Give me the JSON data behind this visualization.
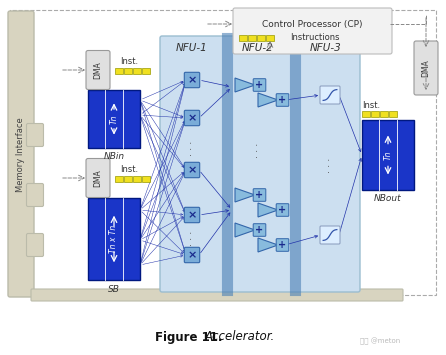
{
  "title": "Figure 11.",
  "title_italic": "Accelerator.",
  "bg_color": "#ffffff",
  "memory_interface_color": "#d8d4c0",
  "memory_interface_label": "Memory Interface",
  "blue_block_color": "#1a35c8",
  "light_blue_bg": "#ccdff0",
  "blue_separator_color": "#4a7fb5",
  "yellow_color": "#f0e020",
  "cp_box_color": "#f2f2f2",
  "gray_dma_color": "#e0e0e0",
  "arrow_color": "#555555",
  "dark_blue_arrow": "#2233aa",
  "nfu_labels": [
    "NFU-1",
    "NFU-2",
    "NFU-3"
  ],
  "nbin_label": "NBin",
  "sb_label": "SB",
  "nbout_label": "NBout",
  "dma_label": "DMA",
  "inst_label": "Inst.",
  "cp_label": "Control Processor (CP)",
  "instructions_label": "Instructions",
  "tn_label": "Tn",
  "tn_x_tn_label": "Tn x Tn",
  "outer_border_color": "#bbbbaa",
  "nfu_bg_border": "#9bbdd0",
  "mult_fill": "#7aacd8",
  "mult_edge": "#3366aa",
  "adder_fill": "#88bbdd",
  "adder_edge": "#3366aa",
  "act_fill": "#ddeeff",
  "act_edge": "#8899bb"
}
